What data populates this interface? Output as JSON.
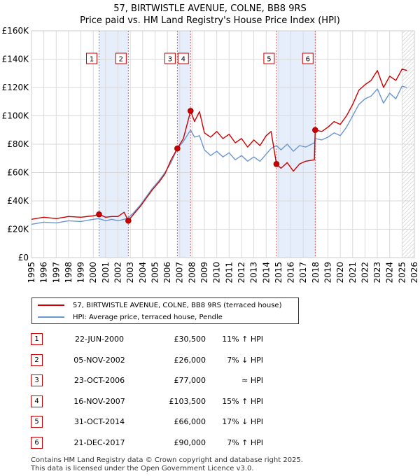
{
  "chart_data": {
    "type": "line",
    "title": "57, BIRTWISTLE AVENUE, COLNE, BB8 9RS",
    "subtitle": "Price paid vs. HM Land Registry's House Price Index (HPI)",
    "x_range": [
      1995,
      2026
    ],
    "ylim": [
      0,
      160000
    ],
    "y_ticks": [
      {
        "value": 0,
        "label": "£0"
      },
      {
        "value": 20000,
        "label": "£20K"
      },
      {
        "value": 40000,
        "label": "£40K"
      },
      {
        "value": 60000,
        "label": "£60K"
      },
      {
        "value": 80000,
        "label": "£80K"
      },
      {
        "value": 100000,
        "label": "£100K"
      },
      {
        "value": 120000,
        "label": "£120K"
      },
      {
        "value": 140000,
        "label": "£140K"
      },
      {
        "value": 160000,
        "label": "£160K"
      }
    ],
    "x_ticks": [
      "1995",
      "1996",
      "1997",
      "1998",
      "1999",
      "2000",
      "2001",
      "2002",
      "2003",
      "2004",
      "2005",
      "2006",
      "2007",
      "2008",
      "2009",
      "2010",
      "2011",
      "2012",
      "2013",
      "2014",
      "2015",
      "2016",
      "2017",
      "2018",
      "2019",
      "2020",
      "2021",
      "2022",
      "2023",
      "2024",
      "2025",
      "2026"
    ],
    "grid": true,
    "shaded_periods": [
      [
        2000.47,
        2002.84
      ],
      [
        2006.81,
        2007.88
      ],
      [
        2014.83,
        2017.97
      ]
    ],
    "future_hatch_from": 2025.0,
    "series": [
      {
        "name": "57, BIRTWISTLE AVENUE, COLNE, BB8 9RS (terraced house)",
        "color": "#cc0000",
        "points": [
          [
            1995.0,
            27000
          ],
          [
            1996.0,
            28500
          ],
          [
            1997.0,
            27500
          ],
          [
            1998.0,
            29000
          ],
          [
            1999.0,
            28500
          ],
          [
            2000.0,
            29500
          ],
          [
            2000.47,
            30500
          ],
          [
            2001.0,
            28500
          ],
          [
            2001.5,
            29000
          ],
          [
            2002.0,
            29000
          ],
          [
            2002.5,
            32000
          ],
          [
            2002.84,
            26000
          ],
          [
            2003.3,
            31000
          ],
          [
            2003.8,
            36000
          ],
          [
            2004.3,
            42000
          ],
          [
            2004.8,
            48000
          ],
          [
            2005.3,
            53000
          ],
          [
            2005.8,
            59000
          ],
          [
            2006.3,
            69000
          ],
          [
            2006.81,
            77000
          ],
          [
            2007.3,
            84000
          ],
          [
            2007.88,
            103500
          ],
          [
            2008.2,
            96000
          ],
          [
            2008.6,
            103000
          ],
          [
            2009.0,
            88000
          ],
          [
            2009.5,
            85000
          ],
          [
            2010.0,
            89000
          ],
          [
            2010.5,
            84000
          ],
          [
            2011.0,
            87000
          ],
          [
            2011.5,
            81000
          ],
          [
            2012.0,
            84000
          ],
          [
            2012.5,
            78000
          ],
          [
            2013.0,
            83000
          ],
          [
            2013.5,
            79000
          ],
          [
            2014.0,
            86000
          ],
          [
            2014.4,
            89000
          ],
          [
            2014.83,
            66000
          ],
          [
            2015.2,
            63000
          ],
          [
            2015.7,
            67000
          ],
          [
            2016.2,
            61000
          ],
          [
            2016.7,
            66000
          ],
          [
            2017.2,
            68000
          ],
          [
            2017.9,
            69000
          ],
          [
            2017.97,
            90000
          ],
          [
            2018.5,
            89000
          ],
          [
            2019.0,
            92000
          ],
          [
            2019.5,
            96000
          ],
          [
            2020.0,
            94000
          ],
          [
            2020.5,
            100000
          ],
          [
            2021.0,
            108000
          ],
          [
            2021.5,
            118000
          ],
          [
            2022.0,
            122000
          ],
          [
            2022.5,
            125000
          ],
          [
            2023.0,
            132000
          ],
          [
            2023.5,
            120000
          ],
          [
            2024.0,
            128000
          ],
          [
            2024.5,
            125000
          ],
          [
            2025.0,
            133000
          ],
          [
            2025.4,
            132000
          ]
        ]
      },
      {
        "name": "HPI: Average price, terraced house, Pendle",
        "color": "#6a96d2",
        "points": [
          [
            1995.0,
            23500
          ],
          [
            1996.0,
            25000
          ],
          [
            1997.0,
            24500
          ],
          [
            1998.0,
            26000
          ],
          [
            1999.0,
            25500
          ],
          [
            2000.0,
            27000
          ],
          [
            2000.47,
            27500
          ],
          [
            2001.0,
            26000
          ],
          [
            2001.5,
            27000
          ],
          [
            2002.0,
            26000
          ],
          [
            2002.5,
            27000
          ],
          [
            2002.84,
            28000
          ],
          [
            2003.3,
            32000
          ],
          [
            2003.8,
            37000
          ],
          [
            2004.3,
            43000
          ],
          [
            2004.8,
            49000
          ],
          [
            2005.3,
            54000
          ],
          [
            2005.8,
            60000
          ],
          [
            2006.3,
            67000
          ],
          [
            2006.81,
            77000
          ],
          [
            2007.3,
            82000
          ],
          [
            2007.88,
            90000
          ],
          [
            2008.2,
            85000
          ],
          [
            2008.6,
            86000
          ],
          [
            2009.0,
            76000
          ],
          [
            2009.5,
            72000
          ],
          [
            2010.0,
            75000
          ],
          [
            2010.5,
            71000
          ],
          [
            2011.0,
            74000
          ],
          [
            2011.5,
            69000
          ],
          [
            2012.0,
            72000
          ],
          [
            2012.5,
            68000
          ],
          [
            2013.0,
            71000
          ],
          [
            2013.5,
            68000
          ],
          [
            2014.0,
            73000
          ],
          [
            2014.4,
            77000
          ],
          [
            2014.83,
            79000
          ],
          [
            2015.2,
            76000
          ],
          [
            2015.7,
            80000
          ],
          [
            2016.2,
            75000
          ],
          [
            2016.7,
            79000
          ],
          [
            2017.2,
            78000
          ],
          [
            2017.9,
            81000
          ],
          [
            2017.97,
            84000
          ],
          [
            2018.5,
            83000
          ],
          [
            2019.0,
            85000
          ],
          [
            2019.5,
            88000
          ],
          [
            2020.0,
            86000
          ],
          [
            2020.5,
            92000
          ],
          [
            2021.0,
            100000
          ],
          [
            2021.5,
            108000
          ],
          [
            2022.0,
            112000
          ],
          [
            2022.5,
            114000
          ],
          [
            2023.0,
            119000
          ],
          [
            2023.5,
            109000
          ],
          [
            2024.0,
            116000
          ],
          [
            2024.5,
            112000
          ],
          [
            2025.0,
            121000
          ],
          [
            2025.4,
            120000
          ]
        ]
      }
    ],
    "markers": [
      {
        "label": "1",
        "year": 2000.47,
        "value": 30500
      },
      {
        "label": "2",
        "year": 2002.84,
        "value": 26000
      },
      {
        "label": "3",
        "year": 2006.81,
        "value": 77000
      },
      {
        "label": "4",
        "year": 2007.88,
        "value": 103500
      },
      {
        "label": "5",
        "year": 2014.83,
        "value": 66000
      },
      {
        "label": "6",
        "year": 2017.97,
        "value": 90000
      }
    ],
    "legend": {
      "position": "below-chart",
      "entries": [
        {
          "label": "57, BIRTWISTLE AVENUE, COLNE, BB8 9RS (terraced house)",
          "color": "#cc0000"
        },
        {
          "label": "HPI: Average price, terraced house, Pendle",
          "color": "#6a96d2"
        }
      ]
    }
  },
  "transactions": [
    {
      "num": "1",
      "date": "22-JUN-2000",
      "price": "£30,500",
      "hpi": "11% ↑ HPI"
    },
    {
      "num": "2",
      "date": "05-NOV-2002",
      "price": "£26,000",
      "hpi": "7% ↓ HPI"
    },
    {
      "num": "3",
      "date": "23-OCT-2006",
      "price": "£77,000",
      "hpi": "≈ HPI"
    },
    {
      "num": "4",
      "date": "16-NOV-2007",
      "price": "£103,500",
      "hpi": "15% ↑ HPI"
    },
    {
      "num": "5",
      "date": "31-OCT-2014",
      "price": "£66,000",
      "hpi": "17% ↓ HPI"
    },
    {
      "num": "6",
      "date": "21-DEC-2017",
      "price": "£90,000",
      "hpi": "7% ↑ HPI"
    }
  ],
  "footer": {
    "line1": "Contains HM Land Registry data © Crown copyright and database right 2025.",
    "line2": "This data is licensed under the Open Government Licence v3.0."
  }
}
